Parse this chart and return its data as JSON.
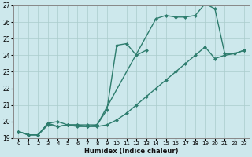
{
  "xlabel": "Humidex (Indice chaleur)",
  "bg_color": "#cde8ec",
  "grid_color": "#aacccc",
  "line_color": "#2e7d6e",
  "xlim": [
    -0.5,
    23.5
  ],
  "ylim": [
    19,
    27
  ],
  "yticks": [
    19,
    20,
    21,
    22,
    23,
    24,
    25,
    26,
    27
  ],
  "xticks": [
    0,
    1,
    2,
    3,
    4,
    5,
    6,
    7,
    8,
    9,
    10,
    11,
    12,
    13,
    14,
    15,
    16,
    17,
    18,
    19,
    20,
    21,
    22,
    23
  ],
  "line1_x": [
    0,
    1,
    2,
    3,
    4,
    5,
    6,
    7,
    8,
    9,
    10,
    11,
    12,
    13
  ],
  "line1_y": [
    19.4,
    19.2,
    19.2,
    19.9,
    20.0,
    19.8,
    19.8,
    19.7,
    19.8,
    20.7,
    24.6,
    24.7,
    24.0,
    24.3
  ],
  "line2_x": [
    0,
    1,
    2,
    3,
    4,
    5,
    6,
    7,
    8,
    14,
    15,
    16,
    17,
    18,
    19,
    20,
    21,
    22,
    23
  ],
  "line2_y": [
    19.4,
    19.2,
    19.2,
    19.9,
    19.7,
    19.8,
    19.8,
    19.8,
    19.8,
    26.2,
    26.4,
    26.3,
    26.3,
    26.4,
    27.1,
    26.8,
    24.1,
    24.1,
    24.3
  ],
  "line3_x": [
    0,
    1,
    2,
    3,
    4,
    5,
    6,
    7,
    8,
    9,
    10,
    11,
    12,
    13,
    14,
    15,
    16,
    17,
    18,
    19,
    20,
    21,
    22,
    23
  ],
  "line3_y": [
    19.4,
    19.2,
    19.2,
    19.8,
    19.7,
    19.8,
    19.7,
    19.7,
    19.7,
    19.8,
    20.1,
    20.5,
    21.0,
    21.5,
    22.0,
    22.5,
    23.0,
    23.5,
    24.0,
    24.5,
    23.8,
    24.0,
    24.1,
    24.3
  ],
  "marker_size": 2.5,
  "linewidth": 1.0
}
